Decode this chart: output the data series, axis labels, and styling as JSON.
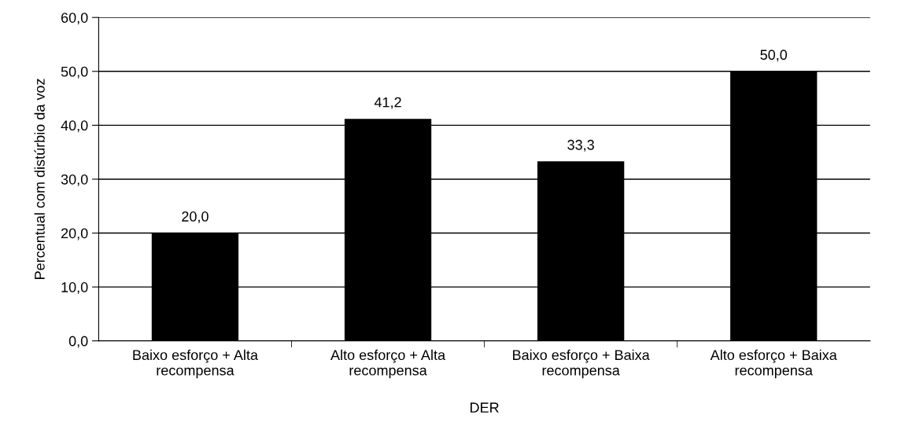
{
  "chart_data": {
    "type": "bar",
    "xlabel": "DER",
    "ylabel": "Percentual com distúrbio da voz",
    "categories": [
      "Baixo esforço + Alta\nrecompensa",
      "Alto esforço + Alta\nrecompensa",
      "Baixo esforço + Baixa\nrecompensa",
      "Alto esforço + Baixa\nrecompensa"
    ],
    "values": [
      20.0,
      41.2,
      33.3,
      50.0
    ],
    "color": "#000000",
    "value_labels": [
      "20,0",
      "41,2",
      "33,3",
      "50,0"
    ],
    "ylim": [
      0,
      60
    ],
    "yticks": [
      {
        "value": 0,
        "label": "0,0"
      },
      {
        "value": 10,
        "label": "10,0"
      },
      {
        "value": 20,
        "label": "20,0"
      },
      {
        "value": 30,
        "label": "30,0"
      },
      {
        "value": 40,
        "label": "40,0"
      },
      {
        "value": 50,
        "label": "50,0"
      },
      {
        "value": 60,
        "label": "60,0"
      }
    ],
    "grid": "y",
    "legend": false
  }
}
